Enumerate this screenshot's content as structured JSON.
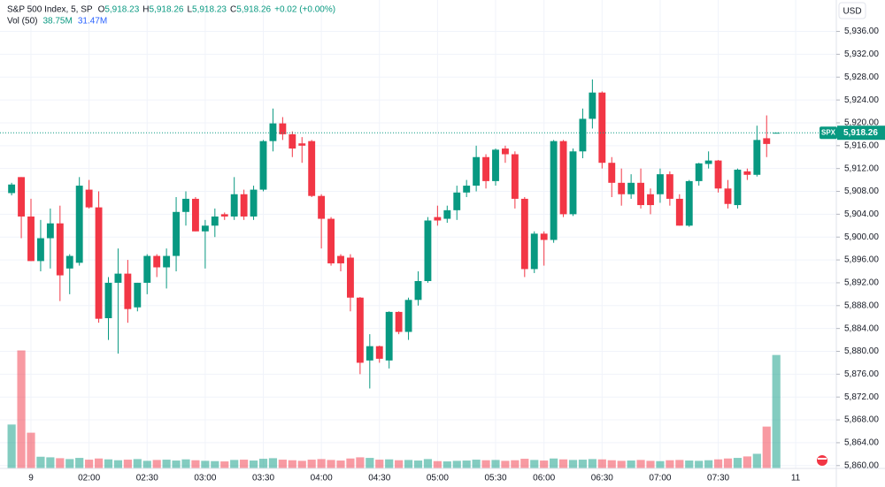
{
  "chart_data": {
    "type": "candlestick",
    "title": "S&P 500 Index, 5, SP",
    "ohlc_labels": [
      {
        "key": "O",
        "value": "5,918.23"
      },
      {
        "key": "H",
        "value": "5,918.26"
      },
      {
        "key": "L",
        "value": "5,918.23"
      },
      {
        "key": "C",
        "value": "5,918.26"
      }
    ],
    "change": "+0.02 (+0.00%)",
    "volume_title": "Vol (50)",
    "volume_labels": [
      "38.75M",
      "31.47M"
    ],
    "currency": "USD",
    "last_price": {
      "value": 5918.26,
      "label": "5,918.26",
      "tag": "SPX"
    },
    "up_color": "#089981",
    "down_color": "#f23645",
    "grid": true,
    "ylim": [
      5859.5,
      5941.5
    ],
    "yticks": [
      {
        "value": 5860,
        "label": "5,860.00"
      },
      {
        "value": 5864,
        "label": "5,864.00"
      },
      {
        "value": 5868,
        "label": "5,868.00"
      },
      {
        "value": 5872,
        "label": "5,872.00"
      },
      {
        "value": 5876,
        "label": "5,876.00"
      },
      {
        "value": 5880,
        "label": "5,880.00"
      },
      {
        "value": 5884,
        "label": "5,884.00"
      },
      {
        "value": 5888,
        "label": "5,888.00"
      },
      {
        "value": 5892,
        "label": "5,892.00"
      },
      {
        "value": 5896,
        "label": "5,896.00"
      },
      {
        "value": 5900,
        "label": "5,900.00"
      },
      {
        "value": 5904,
        "label": "5,904.00"
      },
      {
        "value": 5908,
        "label": "5,908.00"
      },
      {
        "value": 5912,
        "label": "5,912.00"
      },
      {
        "value": 5916,
        "label": "5,916.00"
      },
      {
        "value": 5920,
        "label": "5,920.00"
      },
      {
        "value": 5924,
        "label": "5,924.00"
      },
      {
        "value": 5928,
        "label": "5,928.00"
      },
      {
        "value": 5932,
        "label": "5,932.00"
      },
      {
        "value": 5936,
        "label": "5,936.00"
      }
    ],
    "xlim": [
      -1.2,
      85.2
    ],
    "xticks": [
      {
        "value": 2,
        "label": "9"
      },
      {
        "value": 8,
        "label": "02:00"
      },
      {
        "value": 14,
        "label": "02:30"
      },
      {
        "value": 20,
        "label": "03:00"
      },
      {
        "value": 26,
        "label": "03:30"
      },
      {
        "value": 32,
        "label": "04:00"
      },
      {
        "value": 38,
        "label": "04:30"
      },
      {
        "value": 44,
        "label": "05:00"
      },
      {
        "value": 50,
        "label": "05:30"
      },
      {
        "value": 55,
        "label": "06:00"
      },
      {
        "value": 61,
        "label": "06:30"
      },
      {
        "value": 67,
        "label": "07:00"
      },
      {
        "value": 73,
        "label": "07:30"
      },
      {
        "value": 81,
        "label": "11"
      }
    ],
    "volume_ylim": [
      0,
      160
    ],
    "open": [
      5907.7,
      5910.5,
      5903.6,
      5895.8,
      5899.8,
      5902.4,
      5894.5,
      5895.5,
      5908.3,
      5905.2,
      5885.8,
      5892,
      5893.6,
      5887.7,
      5892,
      5896.7,
      5894.7,
      5896.7,
      5904.4,
      5906.7,
      5901,
      5902,
      5904,
      5903.6,
      5907.5,
      5903.6,
      5908.3,
      5916.8,
      5919.9,
      5918,
      5916.4,
      5916.8,
      5907.2,
      5903.2,
      5896.7,
      5896.4,
      5889.4,
      5878.4,
      5880.9,
      5878.4,
      5886.9,
      5883.4,
      5889,
      5892.3,
      5903.5,
      5903.2,
      5904.7,
      5907.8,
      5909,
      5914,
      5909.8,
      5915.5,
      5914.5,
      5906.7,
      5894.4,
      5900.6,
      5899.5,
      5916.8,
      5904,
      5915,
      5920.7,
      5925.3,
      5913,
      5909.5,
      5907.5,
      5909.5,
      5907.5,
      5907.5,
      5911,
      5906.7,
      5902,
      5909.8,
      5912.8,
      5913.4,
      5908.5,
      5905.6,
      5911.5,
      5910.9,
      5917.3,
      5918.23
    ],
    "high": [
      5909.5,
      5910.5,
      5906.7,
      5903,
      5905,
      5905.5,
      5897,
      5910.5,
      5910,
      5908,
      5893,
      5898,
      5896,
      5892,
      5897,
      5897,
      5898,
      5907,
      5908,
      5907,
      5903,
      5905,
      5904.3,
      5910.5,
      5908.3,
      5909,
      5917,
      5922.5,
      5921,
      5918.5,
      5917.5,
      5917,
      5907.5,
      5903.5,
      5897,
      5897,
      5889.5,
      5883,
      5881,
      5887,
      5887,
      5889.4,
      5894,
      5903.5,
      5905.5,
      5905.5,
      5909,
      5910,
      5916,
      5914.5,
      5915.5,
      5916,
      5915,
      5907,
      5901,
      5901,
      5917,
      5917,
      5915.5,
      5922.5,
      5927.6,
      5925.5,
      5914,
      5912,
      5911,
      5912,
      5908.5,
      5912,
      5911.5,
      5907.5,
      5910,
      5913,
      5915,
      5913.5,
      5910,
      5912,
      5912,
      5919.5,
      5921.3,
      5918.26
    ],
    "low": [
      5907.3,
      5899.8,
      5895.8,
      5894,
      5894.5,
      5888.8,
      5890,
      5895,
      5905,
      5885,
      5882,
      5879.6,
      5885,
      5887,
      5890,
      5893,
      5891,
      5894,
      5902,
      5901,
      5894.5,
      5900,
      5903,
      5903,
      5903,
      5903,
      5908,
      5915,
      5917,
      5914,
      5913,
      5907,
      5898,
      5895,
      5894,
      5887,
      5876,
      5873.5,
      5878,
      5877,
      5883,
      5882,
      5888,
      5892,
      5902,
      5902.5,
      5903,
      5907,
      5908,
      5908.5,
      5909,
      5913,
      5905,
      5893,
      5893.7,
      5895,
      5899,
      5903.5,
      5903.7,
      5913.8,
      5919,
      5912,
      5907,
      5905.5,
      5906.7,
      5905,
      5904,
      5906,
      5905.5,
      5902,
      5901.8,
      5909,
      5912,
      5907.8,
      5905,
      5905,
      5910,
      5910.6,
      5914,
      5918.23
    ],
    "close": [
      5909.2,
      5903.6,
      5895.8,
      5899.8,
      5902.4,
      5893.3,
      5896.7,
      5909,
      5905.2,
      5885.7,
      5892,
      5893.6,
      5887.4,
      5892,
      5896.7,
      5894.7,
      5896.7,
      5904.4,
      5906.7,
      5901,
      5902,
      5903.6,
      5903.6,
      5907.5,
      5903.6,
      5908.3,
      5916.8,
      5919.9,
      5918,
      5915.5,
      5916,
      5907.2,
      5903.2,
      5895.4,
      5895.4,
      5889.4,
      5878,
      5880.9,
      5878.7,
      5886.9,
      5883.4,
      5889,
      5892.3,
      5902.9,
      5902.9,
      5904.7,
      5907.8,
      5909,
      5914,
      5909.8,
      5915.3,
      5914.5,
      5906.7,
      5894.4,
      5900.6,
      5899.5,
      5916.8,
      5904,
      5915,
      5920.7,
      5925.3,
      5913,
      5909.5,
      5907.5,
      5909.5,
      5905.6,
      5905.6,
      5911,
      5906.7,
      5902,
      5909.8,
      5912.9,
      5913.4,
      5908.5,
      5905.8,
      5911.8,
      5910.9,
      5917,
      5916.3,
      5918.26
    ],
    "volume": [
      15,
      40.3,
      12.2,
      4,
      3.8,
      3.5,
      3.2,
      3.6,
      3,
      3.4,
      3.1,
      2.8,
      3,
      3.2,
      2.6,
      2.9,
      3,
      2.7,
      3.1,
      2.8,
      2.6,
      2.5,
      2.4,
      2.9,
      3,
      2.7,
      3.3,
      3.5,
      3,
      2.8,
      2.6,
      3,
      3.2,
      2.9,
      2.7,
      3.4,
      3.8,
      3.6,
      3,
      3.1,
      2.8,
      2.9,
      2.7,
      3.2,
      2.5,
      2.4,
      2.6,
      2.7,
      3,
      2.8,
      2.9,
      2.6,
      2.8,
      3.3,
      2.9,
      2.7,
      3.4,
      3.1,
      2.9,
      3,
      3.2,
      3.1,
      2.8,
      2.6,
      2.7,
      2.9,
      2.6,
      2.5,
      2.8,
      2.9,
      2.7,
      2.6,
      2.8,
      3.1,
      3.4,
      3.6,
      4.1,
      5,
      14.3,
      38.75
    ]
  }
}
